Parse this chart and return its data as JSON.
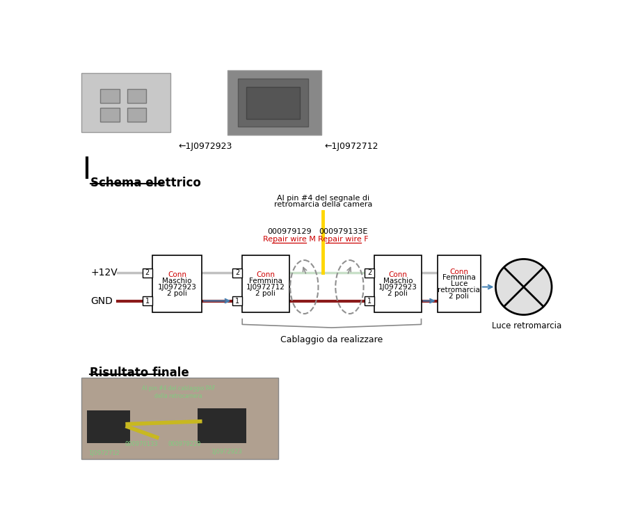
{
  "title_schema": "Schema elettrico",
  "title_finale": "Risultato finale",
  "connector1_label": [
    "Conn",
    "Maschio",
    "1J0972923",
    "2 poli"
  ],
  "connector2_label": [
    "Conn",
    "Femmina",
    "1J0972712",
    "2 poli"
  ],
  "connector3_label": [
    "Conn",
    "Maschio",
    "1J0972923",
    "2 poli"
  ],
  "connector4_label": [
    "Conn",
    "Femmina",
    "Luce",
    "retromarcia",
    "2 poli"
  ],
  "lamp_label": "Luce retromarcia",
  "repair_left_num": "000979129",
  "repair_left_wire": "Repair wire M",
  "repair_right_num": "000979133E",
  "repair_right_wire": "Repair wire F",
  "camera_signal_line1": "Al pin #4 del segnale di",
  "camera_signal_line2": "retromarcia della camera",
  "cablaggio_label": "Cablaggio da realizzare",
  "plus12v_label": "+12V",
  "gnd_label": "GND",
  "part1_label": "←1J0972923",
  "part2_label": "←1J0972712",
  "bg_color": "#ffffff",
  "wire_red_color": "#8B1A1A",
  "wire_green_color": "#c8e0c8",
  "wire_yellow_color": "#FFD700",
  "wire_gray_color": "#c0c0c0",
  "connector_border": "#000000",
  "arrow_color": "#4682B4",
  "dashed_color": "#909090",
  "red_text": "#cc0000",
  "black_text": "#000000"
}
